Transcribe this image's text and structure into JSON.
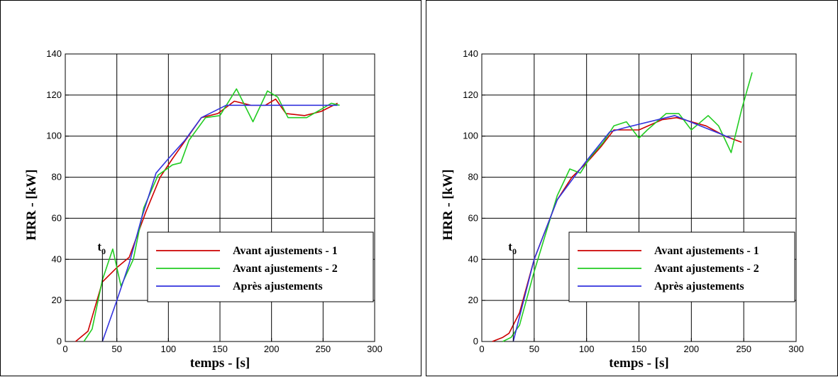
{
  "chart_data": [
    {
      "type": "line",
      "xlabel": "temps - [s]",
      "ylabel": "HRR - [kW]",
      "xlim": [
        0,
        300
      ],
      "ylim": [
        0,
        140
      ],
      "xticks": [
        "0",
        "50",
        "100",
        "150",
        "200",
        "250",
        "300"
      ],
      "yticks": [
        "0",
        "20",
        "40",
        "60",
        "80",
        "100",
        "120",
        "140"
      ],
      "grid": true,
      "legend_position": "bottom-right",
      "marker": {
        "label": "t",
        "subscript": "0",
        "x": 36
      },
      "series": [
        {
          "name": "Avant ajustements - 1",
          "color": "#cc0000",
          "x": [
            10,
            22,
            36,
            50,
            62,
            78,
            92,
            104,
            118,
            132,
            148,
            164,
            180,
            194,
            204,
            214,
            232,
            248,
            264
          ],
          "y": [
            0,
            5,
            29,
            36,
            41,
            63,
            80,
            89,
            99,
            109,
            111,
            117,
            115,
            115,
            118,
            111,
            110,
            112,
            116
          ]
        },
        {
          "name": "Avant ajustements - 2",
          "color": "#22cc22",
          "x": [
            18,
            26,
            36,
            46,
            54,
            66,
            76,
            90,
            104,
            112,
            120,
            136,
            150,
            166,
            182,
            196,
            206,
            216,
            234,
            248,
            258,
            266
          ],
          "y": [
            0,
            6,
            30,
            45,
            27,
            40,
            65,
            81,
            86,
            87,
            98,
            109,
            110,
            123,
            107,
            122,
            119,
            109,
            109,
            113,
            116,
            115
          ]
        },
        {
          "name": "Après ajustements",
          "color": "#3333dd",
          "x": [
            36,
            50,
            62,
            74,
            88,
            100,
            116,
            132,
            156,
            264
          ],
          "y": [
            0,
            20,
            38,
            60,
            82,
            89,
            98,
            109,
            115,
            115
          ]
        }
      ]
    },
    {
      "type": "line",
      "xlabel": "temps - [s]",
      "ylabel": "HRR - [kW]",
      "xlim": [
        0,
        300
      ],
      "ylim": [
        0,
        140
      ],
      "xticks": [
        "0",
        "50",
        "100",
        "150",
        "200",
        "250",
        "300"
      ],
      "yticks": [
        "0",
        "20",
        "40",
        "60",
        "80",
        "100",
        "120",
        "140"
      ],
      "grid": true,
      "legend_position": "bottom-right",
      "marker": {
        "label": "t",
        "subscript": "0",
        "x": 30
      },
      "series": [
        {
          "name": "Avant ajustements - 1",
          "color": "#cc0000",
          "x": [
            10,
            20,
            26,
            36,
            50,
            72,
            86,
            100,
            114,
            126,
            150,
            172,
            186,
            200,
            214,
            232,
            248
          ],
          "y": [
            0,
            2,
            4,
            14,
            40,
            69,
            80,
            87,
            95,
            103,
            103,
            108,
            109,
            107,
            105,
            100,
            97
          ],
          "comment": ""
        },
        {
          "name": "Avant ajustements - 2",
          "color": "#22cc22",
          "x": [
            20,
            28,
            36,
            50,
            72,
            84,
            94,
            104,
            116,
            126,
            138,
            150,
            158,
            176,
            188,
            200,
            216,
            226,
            238,
            248,
            258
          ],
          "y": [
            0,
            2,
            8,
            34,
            71,
            84,
            82,
            90,
            97,
            105,
            107,
            99,
            103,
            111,
            111,
            103,
            110,
            105,
            92,
            113,
            131
          ]
        },
        {
          "name": "Après ajustements",
          "color": "#3333dd",
          "x": [
            30,
            50,
            72,
            88,
            100,
            122,
            136,
            184,
            238
          ],
          "y": [
            0,
            40,
            69,
            80,
            88,
            102,
            104,
            110,
            99
          ]
        }
      ]
    }
  ]
}
